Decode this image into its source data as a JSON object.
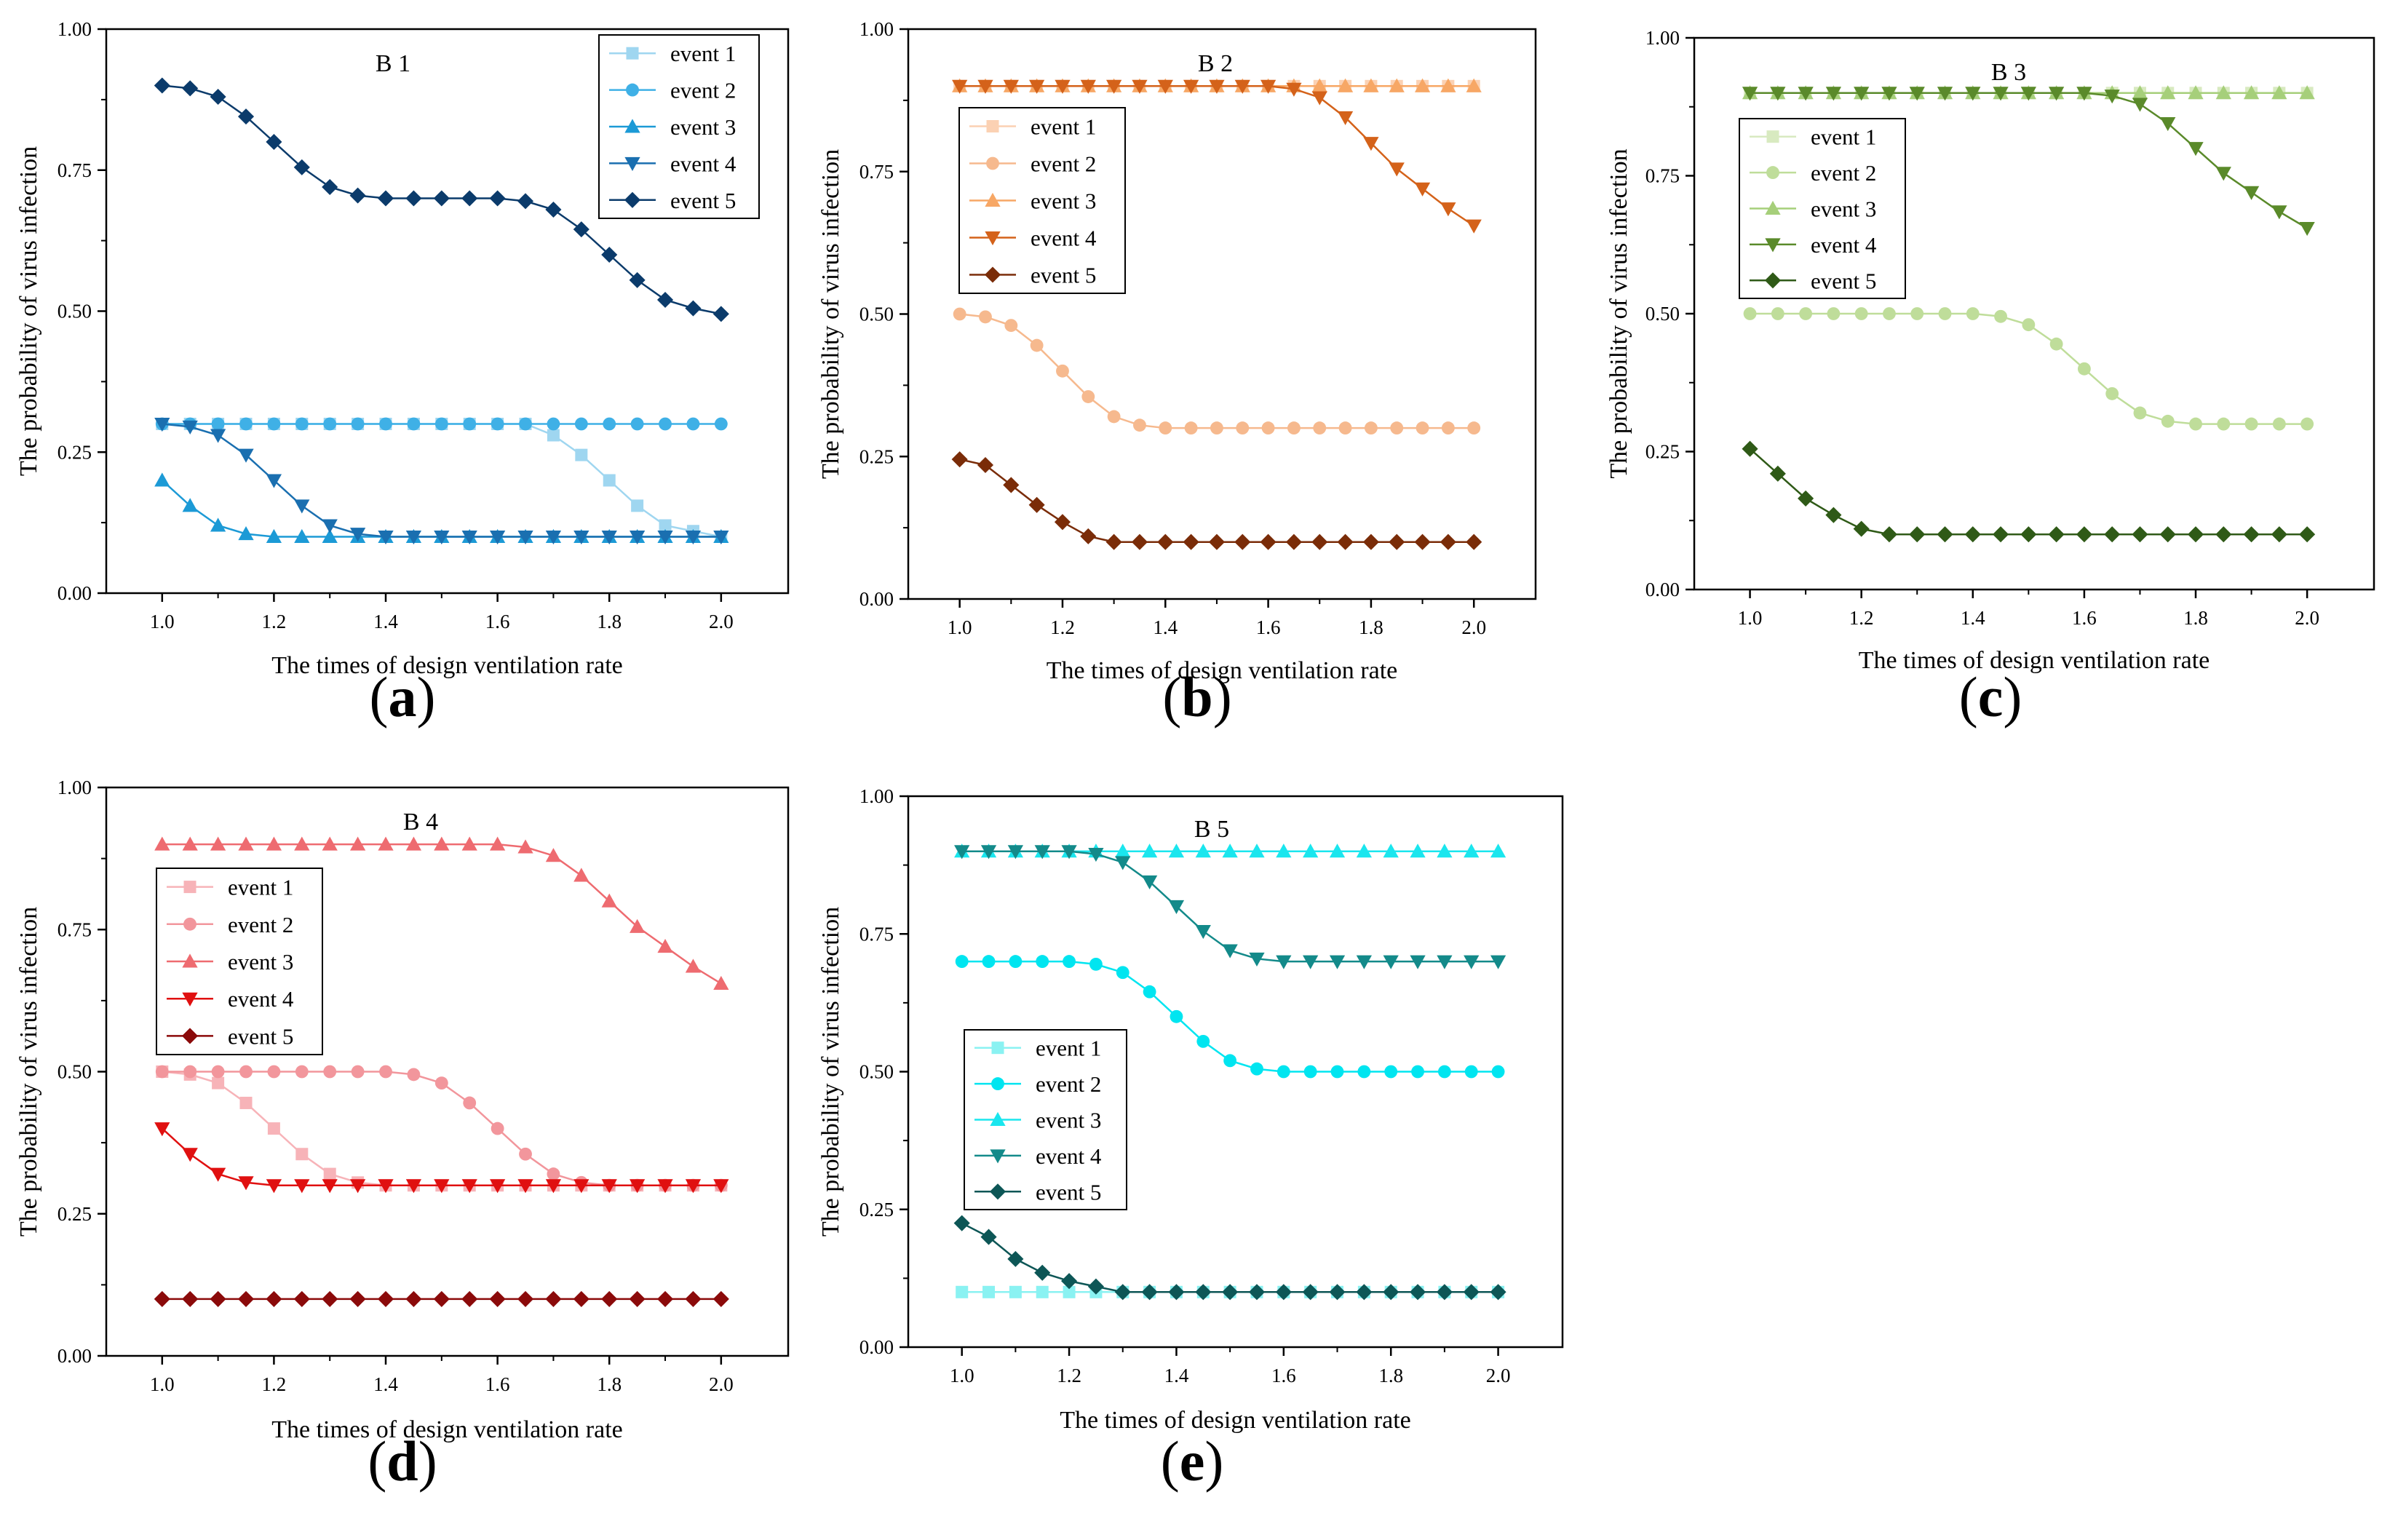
{
  "chart_data": [
    {
      "panel_label": "(a)",
      "type": "line",
      "title": "B 1",
      "xlabel": "The times of design ventilation rate",
      "ylabel": "The probability of virus infection",
      "xlim": [
        0.9,
        2.12
      ],
      "ylim": [
        0.0,
        1.0
      ],
      "xticks": [
        "1.0",
        "1.2",
        "1.4",
        "1.6",
        "1.8",
        "2.0"
      ],
      "yticks": [
        "0.00",
        "0.25",
        "0.50",
        "0.75",
        "1.00"
      ],
      "grid": false,
      "legend_position": "top-right",
      "x": [
        1.0,
        1.05,
        1.1,
        1.15,
        1.2,
        1.25,
        1.3,
        1.35,
        1.4,
        1.45,
        1.5,
        1.55,
        1.6,
        1.65,
        1.7,
        1.75,
        1.8,
        1.85,
        1.9,
        1.95,
        2.0
      ],
      "series": [
        {
          "name": "event 1",
          "marker": "square",
          "color": "#9fd6f0",
          "values": [
            0.3,
            0.3,
            0.3,
            0.3,
            0.3,
            0.3,
            0.3,
            0.3,
            0.3,
            0.3,
            0.3,
            0.3,
            0.3,
            0.3,
            0.28,
            0.245,
            0.2,
            0.155,
            0.12,
            0.11,
            0.1
          ]
        },
        {
          "name": "event 2",
          "marker": "circle",
          "color": "#3fb0e6",
          "values": [
            0.3,
            0.3,
            0.3,
            0.3,
            0.3,
            0.3,
            0.3,
            0.3,
            0.3,
            0.3,
            0.3,
            0.3,
            0.3,
            0.3,
            0.3,
            0.3,
            0.3,
            0.3,
            0.3,
            0.3,
            0.3
          ]
        },
        {
          "name": "event 3",
          "marker": "triangle-up",
          "color": "#1c9ad6",
          "values": [
            0.2,
            0.155,
            0.12,
            0.105,
            0.1,
            0.1,
            0.1,
            0.1,
            0.1,
            0.1,
            0.1,
            0.1,
            0.1,
            0.1,
            0.1,
            0.1,
            0.1,
            0.1,
            0.1,
            0.1,
            0.1
          ]
        },
        {
          "name": "event 4",
          "marker": "triangle-down",
          "color": "#1a6fb0",
          "values": [
            0.3,
            0.295,
            0.28,
            0.245,
            0.2,
            0.155,
            0.12,
            0.105,
            0.1,
            0.1,
            0.1,
            0.1,
            0.1,
            0.1,
            0.1,
            0.1,
            0.1,
            0.1,
            0.1,
            0.1,
            0.1
          ]
        },
        {
          "name": "event 5",
          "marker": "diamond",
          "color": "#0b3b6b",
          "values": [
            0.9,
            0.895,
            0.88,
            0.845,
            0.8,
            0.755,
            0.72,
            0.705,
            0.7,
            0.7,
            0.7,
            0.7,
            0.7,
            0.695,
            0.68,
            0.645,
            0.6,
            0.555,
            0.52,
            0.505,
            0.495
          ]
        }
      ]
    },
    {
      "panel_label": "(b)",
      "type": "line",
      "title": "B 2",
      "xlabel": "The times of design ventilation rate",
      "ylabel": "The probability of virus infection",
      "xlim": [
        0.9,
        2.12
      ],
      "ylim": [
        0.0,
        1.0
      ],
      "xticks": [
        "1.0",
        "1.2",
        "1.4",
        "1.6",
        "1.8",
        "2.0"
      ],
      "yticks": [
        "0.00",
        "0.25",
        "0.50",
        "0.75",
        "1.00"
      ],
      "grid": false,
      "legend_position": "top-left",
      "x": [
        1.0,
        1.05,
        1.1,
        1.15,
        1.2,
        1.25,
        1.3,
        1.35,
        1.4,
        1.45,
        1.5,
        1.55,
        1.6,
        1.65,
        1.7,
        1.75,
        1.8,
        1.85,
        1.9,
        1.95,
        2.0
      ],
      "series": [
        {
          "name": "event 1",
          "marker": "square",
          "color": "#fbd1b3",
          "values": [
            0.9,
            0.9,
            0.9,
            0.9,
            0.9,
            0.9,
            0.9,
            0.9,
            0.9,
            0.9,
            0.9,
            0.9,
            0.9,
            0.9,
            0.9,
            0.9,
            0.9,
            0.9,
            0.9,
            0.9,
            0.9
          ]
        },
        {
          "name": "event 2",
          "marker": "circle",
          "color": "#f6b98e",
          "values": [
            0.5,
            0.495,
            0.48,
            0.445,
            0.4,
            0.355,
            0.32,
            0.305,
            0.3,
            0.3,
            0.3,
            0.3,
            0.3,
            0.3,
            0.3,
            0.3,
            0.3,
            0.3,
            0.3,
            0.3,
            0.3
          ]
        },
        {
          "name": "event 3",
          "marker": "triangle-up",
          "color": "#f7a765",
          "values": [
            0.9,
            0.9,
            0.9,
            0.9,
            0.9,
            0.9,
            0.9,
            0.9,
            0.9,
            0.9,
            0.9,
            0.9,
            0.9,
            0.9,
            0.9,
            0.9,
            0.9,
            0.9,
            0.9,
            0.9,
            0.9
          ]
        },
        {
          "name": "event 4",
          "marker": "triangle-down",
          "color": "#d4621a",
          "values": [
            0.9,
            0.9,
            0.9,
            0.9,
            0.9,
            0.9,
            0.9,
            0.9,
            0.9,
            0.9,
            0.9,
            0.9,
            0.9,
            0.895,
            0.88,
            0.845,
            0.8,
            0.755,
            0.72,
            0.685,
            0.655
          ]
        },
        {
          "name": "event 5",
          "marker": "diamond",
          "color": "#7a2c08",
          "values": [
            0.245,
            0.235,
            0.2,
            0.165,
            0.135,
            0.11,
            0.1,
            0.1,
            0.1,
            0.1,
            0.1,
            0.1,
            0.1,
            0.1,
            0.1,
            0.1,
            0.1,
            0.1,
            0.1,
            0.1,
            0.1
          ]
        }
      ]
    },
    {
      "panel_label": "(c)",
      "type": "line",
      "title": "B 3",
      "xlabel": "The times of design ventilation rate",
      "ylabel": "The probability of virus infection",
      "xlim": [
        0.9,
        2.12
      ],
      "ylim": [
        0.0,
        1.0
      ],
      "xticks": [
        "1.0",
        "1.2",
        "1.4",
        "1.6",
        "1.8",
        "2.0"
      ],
      "yticks": [
        "0.00",
        "0.25",
        "0.50",
        "0.75",
        "1.00"
      ],
      "grid": false,
      "legend_position": "top-left",
      "x": [
        1.0,
        1.05,
        1.1,
        1.15,
        1.2,
        1.25,
        1.3,
        1.35,
        1.4,
        1.45,
        1.5,
        1.55,
        1.6,
        1.65,
        1.7,
        1.75,
        1.8,
        1.85,
        1.9,
        1.95,
        2.0
      ],
      "series": [
        {
          "name": "event 1",
          "marker": "square",
          "color": "#d8eac0",
          "values": [
            0.9,
            0.9,
            0.9,
            0.9,
            0.9,
            0.9,
            0.9,
            0.9,
            0.9,
            0.9,
            0.9,
            0.9,
            0.9,
            0.9,
            0.9,
            0.9,
            0.9,
            0.9,
            0.9,
            0.9,
            0.9
          ]
        },
        {
          "name": "event 2",
          "marker": "circle",
          "color": "#bfdd9a",
          "values": [
            0.5,
            0.5,
            0.5,
            0.5,
            0.5,
            0.5,
            0.5,
            0.5,
            0.5,
            0.495,
            0.48,
            0.445,
            0.4,
            0.355,
            0.32,
            0.305,
            0.3,
            0.3,
            0.3,
            0.3,
            0.3
          ]
        },
        {
          "name": "event 3",
          "marker": "triangle-up",
          "color": "#a6cf7a",
          "values": [
            0.9,
            0.9,
            0.9,
            0.9,
            0.9,
            0.9,
            0.9,
            0.9,
            0.9,
            0.9,
            0.9,
            0.9,
            0.9,
            0.9,
            0.9,
            0.9,
            0.9,
            0.9,
            0.9,
            0.9,
            0.9
          ]
        },
        {
          "name": "event 4",
          "marker": "triangle-down",
          "color": "#5a8a2a",
          "values": [
            0.9,
            0.9,
            0.9,
            0.9,
            0.9,
            0.9,
            0.9,
            0.9,
            0.9,
            0.9,
            0.9,
            0.9,
            0.9,
            0.895,
            0.88,
            0.845,
            0.8,
            0.755,
            0.72,
            0.685,
            0.655
          ]
        },
        {
          "name": "event 5",
          "marker": "diamond",
          "color": "#2f5a17",
          "values": [
            0.255,
            0.21,
            0.165,
            0.135,
            0.11,
            0.1,
            0.1,
            0.1,
            0.1,
            0.1,
            0.1,
            0.1,
            0.1,
            0.1,
            0.1,
            0.1,
            0.1,
            0.1,
            0.1,
            0.1,
            0.1
          ]
        }
      ]
    },
    {
      "panel_label": "(d)",
      "type": "line",
      "title": "B 4",
      "xlabel": "The times of design ventilation rate",
      "ylabel": "The probability of virus infection",
      "xlim": [
        0.9,
        2.12
      ],
      "ylim": [
        0.0,
        1.0
      ],
      "xticks": [
        "1.0",
        "1.2",
        "1.4",
        "1.6",
        "1.8",
        "2.0"
      ],
      "yticks": [
        "0.00",
        "0.25",
        "0.50",
        "0.75",
        "1.00"
      ],
      "grid": false,
      "legend_position": "middle-left",
      "x": [
        1.0,
        1.05,
        1.1,
        1.15,
        1.2,
        1.25,
        1.3,
        1.35,
        1.4,
        1.45,
        1.5,
        1.55,
        1.6,
        1.65,
        1.7,
        1.75,
        1.8,
        1.85,
        1.9,
        1.95,
        2.0
      ],
      "series": [
        {
          "name": "event 1",
          "marker": "square",
          "color": "#f7b3b8",
          "values": [
            0.5,
            0.495,
            0.48,
            0.445,
            0.4,
            0.355,
            0.32,
            0.305,
            0.3,
            0.3,
            0.3,
            0.3,
            0.3,
            0.3,
            0.3,
            0.3,
            0.3,
            0.3,
            0.3,
            0.3,
            0.3
          ]
        },
        {
          "name": "event 2",
          "marker": "circle",
          "color": "#f2969c",
          "values": [
            0.5,
            0.5,
            0.5,
            0.5,
            0.5,
            0.5,
            0.5,
            0.5,
            0.5,
            0.495,
            0.48,
            0.445,
            0.4,
            0.355,
            0.32,
            0.305,
            0.3,
            0.3,
            0.3,
            0.3,
            0.3
          ]
        },
        {
          "name": "event 3",
          "marker": "triangle-up",
          "color": "#ee6b70",
          "values": [
            0.9,
            0.9,
            0.9,
            0.9,
            0.9,
            0.9,
            0.9,
            0.9,
            0.9,
            0.9,
            0.9,
            0.9,
            0.9,
            0.895,
            0.88,
            0.845,
            0.8,
            0.755,
            0.72,
            0.685,
            0.655
          ]
        },
        {
          "name": "event 4",
          "marker": "triangle-down",
          "color": "#e01010",
          "values": [
            0.4,
            0.355,
            0.32,
            0.305,
            0.3,
            0.3,
            0.3,
            0.3,
            0.3,
            0.3,
            0.3,
            0.3,
            0.3,
            0.3,
            0.3,
            0.3,
            0.3,
            0.3,
            0.3,
            0.3,
            0.3
          ]
        },
        {
          "name": "event 5",
          "marker": "diamond",
          "color": "#8b0a0a",
          "values": [
            0.1,
            0.1,
            0.1,
            0.1,
            0.1,
            0.1,
            0.1,
            0.1,
            0.1,
            0.1,
            0.1,
            0.1,
            0.1,
            0.1,
            0.1,
            0.1,
            0.1,
            0.1,
            0.1,
            0.1,
            0.1
          ]
        }
      ]
    },
    {
      "panel_label": "(e)",
      "type": "line",
      "title": "B 5",
      "xlabel": "The times of design ventilation rate",
      "ylabel": "The probability of virus infection",
      "xlim": [
        0.9,
        2.12
      ],
      "ylim": [
        0.0,
        1.0
      ],
      "xticks": [
        "1.0",
        "1.2",
        "1.4",
        "1.6",
        "1.8",
        "2.0"
      ],
      "yticks": [
        "0.00",
        "0.25",
        "0.50",
        "0.75",
        "1.00"
      ],
      "grid": false,
      "legend_position": "middle-left",
      "x": [
        1.0,
        1.05,
        1.1,
        1.15,
        1.2,
        1.25,
        1.3,
        1.35,
        1.4,
        1.45,
        1.5,
        1.55,
        1.6,
        1.65,
        1.7,
        1.75,
        1.8,
        1.85,
        1.9,
        1.95,
        2.0
      ],
      "series": [
        {
          "name": "event 1",
          "marker": "square",
          "color": "#8af2f2",
          "values": [
            0.1,
            0.1,
            0.1,
            0.1,
            0.1,
            0.1,
            0.1,
            0.1,
            0.1,
            0.1,
            0.1,
            0.1,
            0.1,
            0.1,
            0.1,
            0.1,
            0.1,
            0.1,
            0.1,
            0.1,
            0.1
          ]
        },
        {
          "name": "event 2",
          "marker": "circle",
          "color": "#00e5f0",
          "values": [
            0.7,
            0.7,
            0.7,
            0.7,
            0.7,
            0.695,
            0.68,
            0.645,
            0.6,
            0.555,
            0.52,
            0.505,
            0.5,
            0.5,
            0.5,
            0.5,
            0.5,
            0.5,
            0.5,
            0.5,
            0.5
          ]
        },
        {
          "name": "event 3",
          "marker": "triangle-up",
          "color": "#1ae6ee",
          "values": [
            0.9,
            0.9,
            0.9,
            0.9,
            0.9,
            0.9,
            0.9,
            0.9,
            0.9,
            0.9,
            0.9,
            0.9,
            0.9,
            0.9,
            0.9,
            0.9,
            0.9,
            0.9,
            0.9,
            0.9,
            0.9
          ]
        },
        {
          "name": "event 4",
          "marker": "triangle-down",
          "color": "#138a8a",
          "values": [
            0.9,
            0.9,
            0.9,
            0.9,
            0.9,
            0.895,
            0.88,
            0.845,
            0.8,
            0.755,
            0.72,
            0.705,
            0.7,
            0.7,
            0.7,
            0.7,
            0.7,
            0.7,
            0.7,
            0.7,
            0.7
          ]
        },
        {
          "name": "event 5",
          "marker": "diamond",
          "color": "#0d5656",
          "values": [
            0.225,
            0.2,
            0.16,
            0.135,
            0.12,
            0.11,
            0.1,
            0.1,
            0.1,
            0.1,
            0.1,
            0.1,
            0.1,
            0.1,
            0.1,
            0.1,
            0.1,
            0.1,
            0.1,
            0.1,
            0.1
          ]
        }
      ]
    }
  ]
}
